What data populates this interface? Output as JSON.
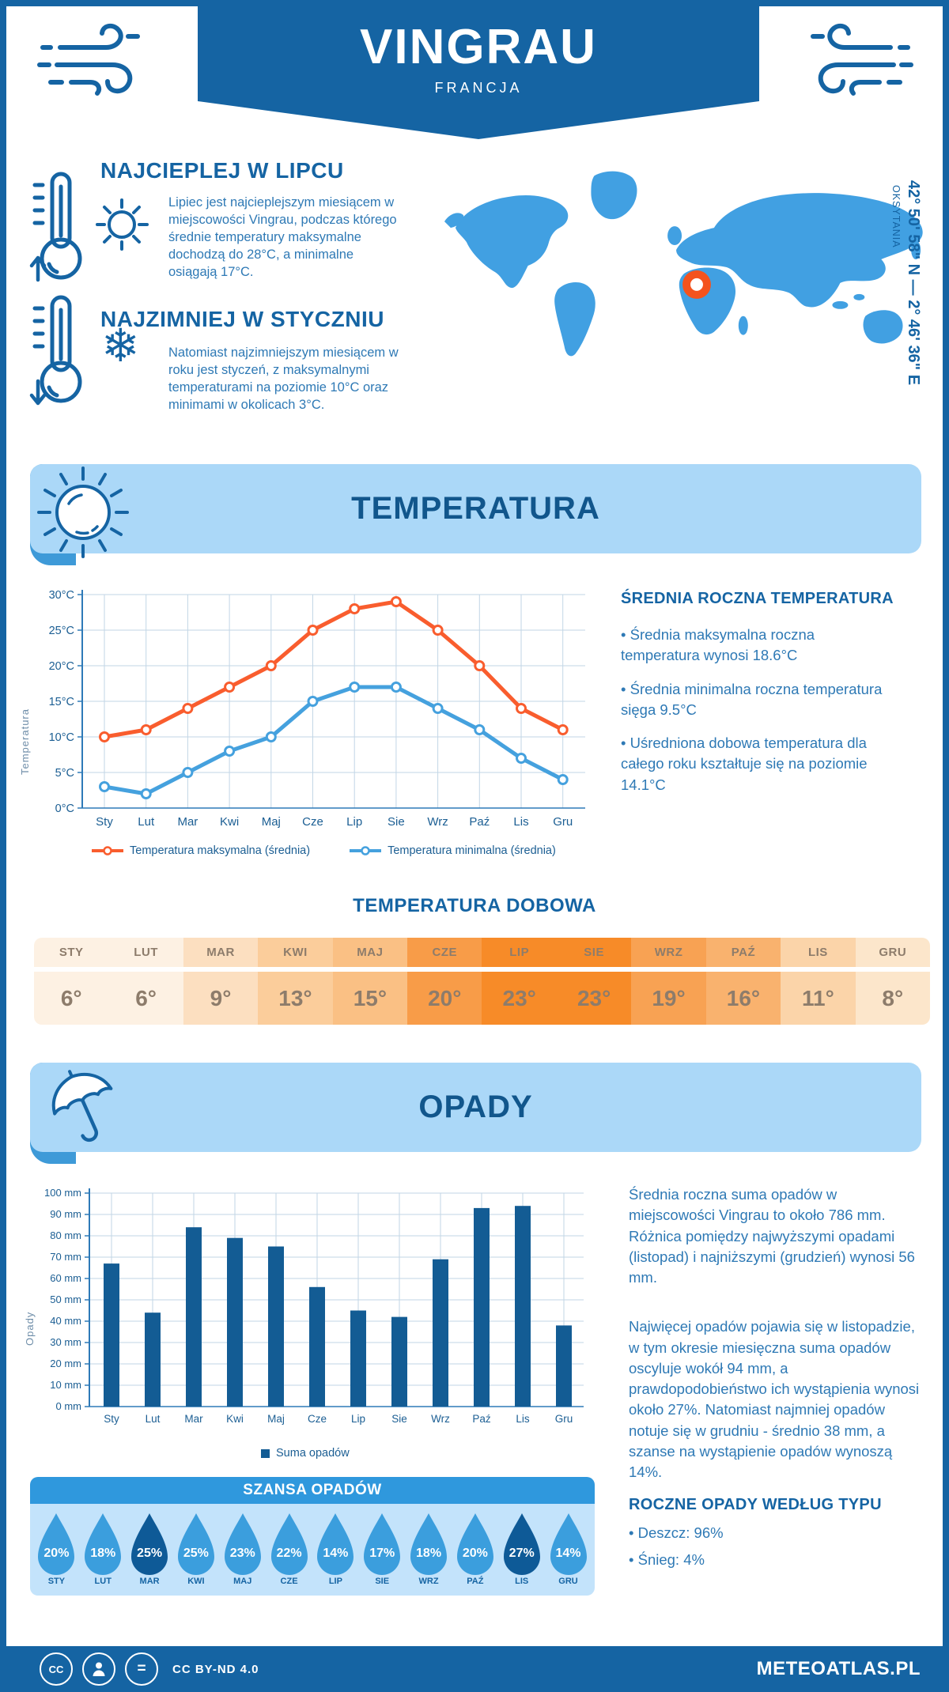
{
  "colors": {
    "primary": "#1564a3",
    "banner_light": "#abd8f8",
    "banner_mid": "#3e9ad8",
    "map_blue": "#41a0e2",
    "marker_orange": "#f4531d",
    "line_max": "#f95d2e",
    "line_min": "#45a1de",
    "bar_blue": "#135c94",
    "chance_header": "#2f98dd",
    "chance_panel": "#c3e3fb",
    "droplet": "#3b9edd",
    "droplet_dark": "#0e5a97",
    "table_text": "#8d7c6b"
  },
  "header": {
    "title": "VINGRAU",
    "subtitle": "FRANCJA"
  },
  "highlights": {
    "warm": {
      "title": "NAJCIEPLEJ W LIPCU",
      "text": "Lipiec jest najcieplejszym miesiącem w miejscowości Vingrau, podczas którego średnie temperatury maksymalne dochodzą do 28°C, a minimalne osiągają 17°C."
    },
    "cold": {
      "title": "NAJZIMNIEJ W STYCZNIU",
      "text": "Natomiast najzimniejszym miesiącem w roku jest styczeń, z maksymalnymi temperaturami na poziomie 10°C oraz minimami w okolicach 3°C."
    }
  },
  "map": {
    "region_label": "OKSYTANIA",
    "coordinates": "42° 50' 58\" N — 2° 46' 36\" E"
  },
  "temperature": {
    "section_title": "TEMPERATURA",
    "annual": {
      "heading": "ŚREDNIA ROCZNA TEMPERATURA",
      "bullets": [
        "• Średnia maksymalna roczna temperatura wynosi 18.6°C",
        "• Średnia minimalna roczna temperatura sięga 9.5°C",
        "• Uśredniona dobowa temperatura dla całego roku kształtuje się na poziomie 14.1°C"
      ]
    },
    "daily": {
      "title": "TEMPERATURA DOBOWA",
      "months": [
        "STY",
        "LUT",
        "MAR",
        "KWI",
        "MAJ",
        "CZE",
        "LIP",
        "SIE",
        "WRZ",
        "PAŹ",
        "LIS",
        "GRU"
      ],
      "values": [
        "6°",
        "6°",
        "9°",
        "13°",
        "15°",
        "20°",
        "23°",
        "23°",
        "19°",
        "16°",
        "11°",
        "8°"
      ],
      "cell_colors": [
        "#fdf1e3",
        "#fdf1e3",
        "#fcdfc0",
        "#fbcd9b",
        "#fac084",
        "#f89c48",
        "#f78b28",
        "#f78b28",
        "#f8a253",
        "#f9b26e",
        "#fbd4a9",
        "#fce6cb"
      ]
    }
  },
  "precipitation": {
    "section_title": "OPADY",
    "paragraphs": [
      "Średnia roczna suma opadów w miejscowości Vingrau to około 786 mm. Różnica pomiędzy najwyższymi opadami (listopad) i najniższymi (grudzień) wynosi 56 mm.",
      "Najwięcej opadów pojawia się w listopadzie, w tym okresie miesięczna suma opadów oscyluje wokół 94 mm, a prawdopodobieństwo ich wystąpienia wynosi około 27%. Natomiast najmniej opadów notuje się w grudniu - średnio 38 mm, a szanse na wystąpienie opadów wynoszą 14%."
    ],
    "type_heading": "ROCZNE OPADY WEDŁUG TYPU",
    "type_bullets": [
      "• Deszcz: 96%",
      "• Śnieg: 4%"
    ],
    "chance": {
      "title": "SZANSA OPADÓW",
      "months": [
        "STY",
        "LUT",
        "MAR",
        "KWI",
        "MAJ",
        "CZE",
        "LIP",
        "SIE",
        "WRZ",
        "PAŹ",
        "LIS",
        "GRU"
      ],
      "values": [
        "20%",
        "18%",
        "25%",
        "25%",
        "23%",
        "22%",
        "14%",
        "17%",
        "18%",
        "20%",
        "27%",
        "14%"
      ],
      "dark": [
        false,
        false,
        true,
        false,
        false,
        false,
        false,
        false,
        false,
        false,
        true,
        false
      ]
    }
  },
  "footer": {
    "license": "CC BY-ND 4.0",
    "site": "METEOATLAS.PL"
  },
  "chart_data": [
    {
      "type": "line",
      "title": "TEMPERATURA",
      "categories": [
        "Sty",
        "Lut",
        "Mar",
        "Kwi",
        "Maj",
        "Cze",
        "Lip",
        "Sie",
        "Wrz",
        "Paź",
        "Lis",
        "Gru"
      ],
      "series": [
        {
          "name": "Temperatura maksymalna (średnia)",
          "color": "#f95d2e",
          "values": [
            10,
            11,
            14,
            17,
            20,
            25,
            28,
            29,
            25,
            20,
            14,
            11
          ]
        },
        {
          "name": "Temperatura minimalna (średnia)",
          "color": "#45a1de",
          "values": [
            3,
            2,
            5,
            8,
            10,
            15,
            17,
            17,
            14,
            11,
            7,
            4
          ]
        }
      ],
      "ylabel": "Temperatura",
      "ylim": [
        0,
        30
      ],
      "ytick_step": 5,
      "ytick_suffix": "°C",
      "grid": true,
      "legend_position": "bottom"
    },
    {
      "type": "bar",
      "title": "OPADY",
      "categories": [
        "Sty",
        "Lut",
        "Mar",
        "Kwi",
        "Maj",
        "Cze",
        "Lip",
        "Sie",
        "Wrz",
        "Paź",
        "Lis",
        "Gru"
      ],
      "series": [
        {
          "name": "Suma opadów",
          "color": "#135c94",
          "values": [
            67,
            44,
            84,
            79,
            75,
            56,
            45,
            42,
            69,
            93,
            94,
            38
          ]
        }
      ],
      "ylabel": "Opady",
      "ylim": [
        0,
        100
      ],
      "ytick_step": 10,
      "ytick_suffix": " mm",
      "grid": true,
      "legend_position": "bottom"
    }
  ]
}
